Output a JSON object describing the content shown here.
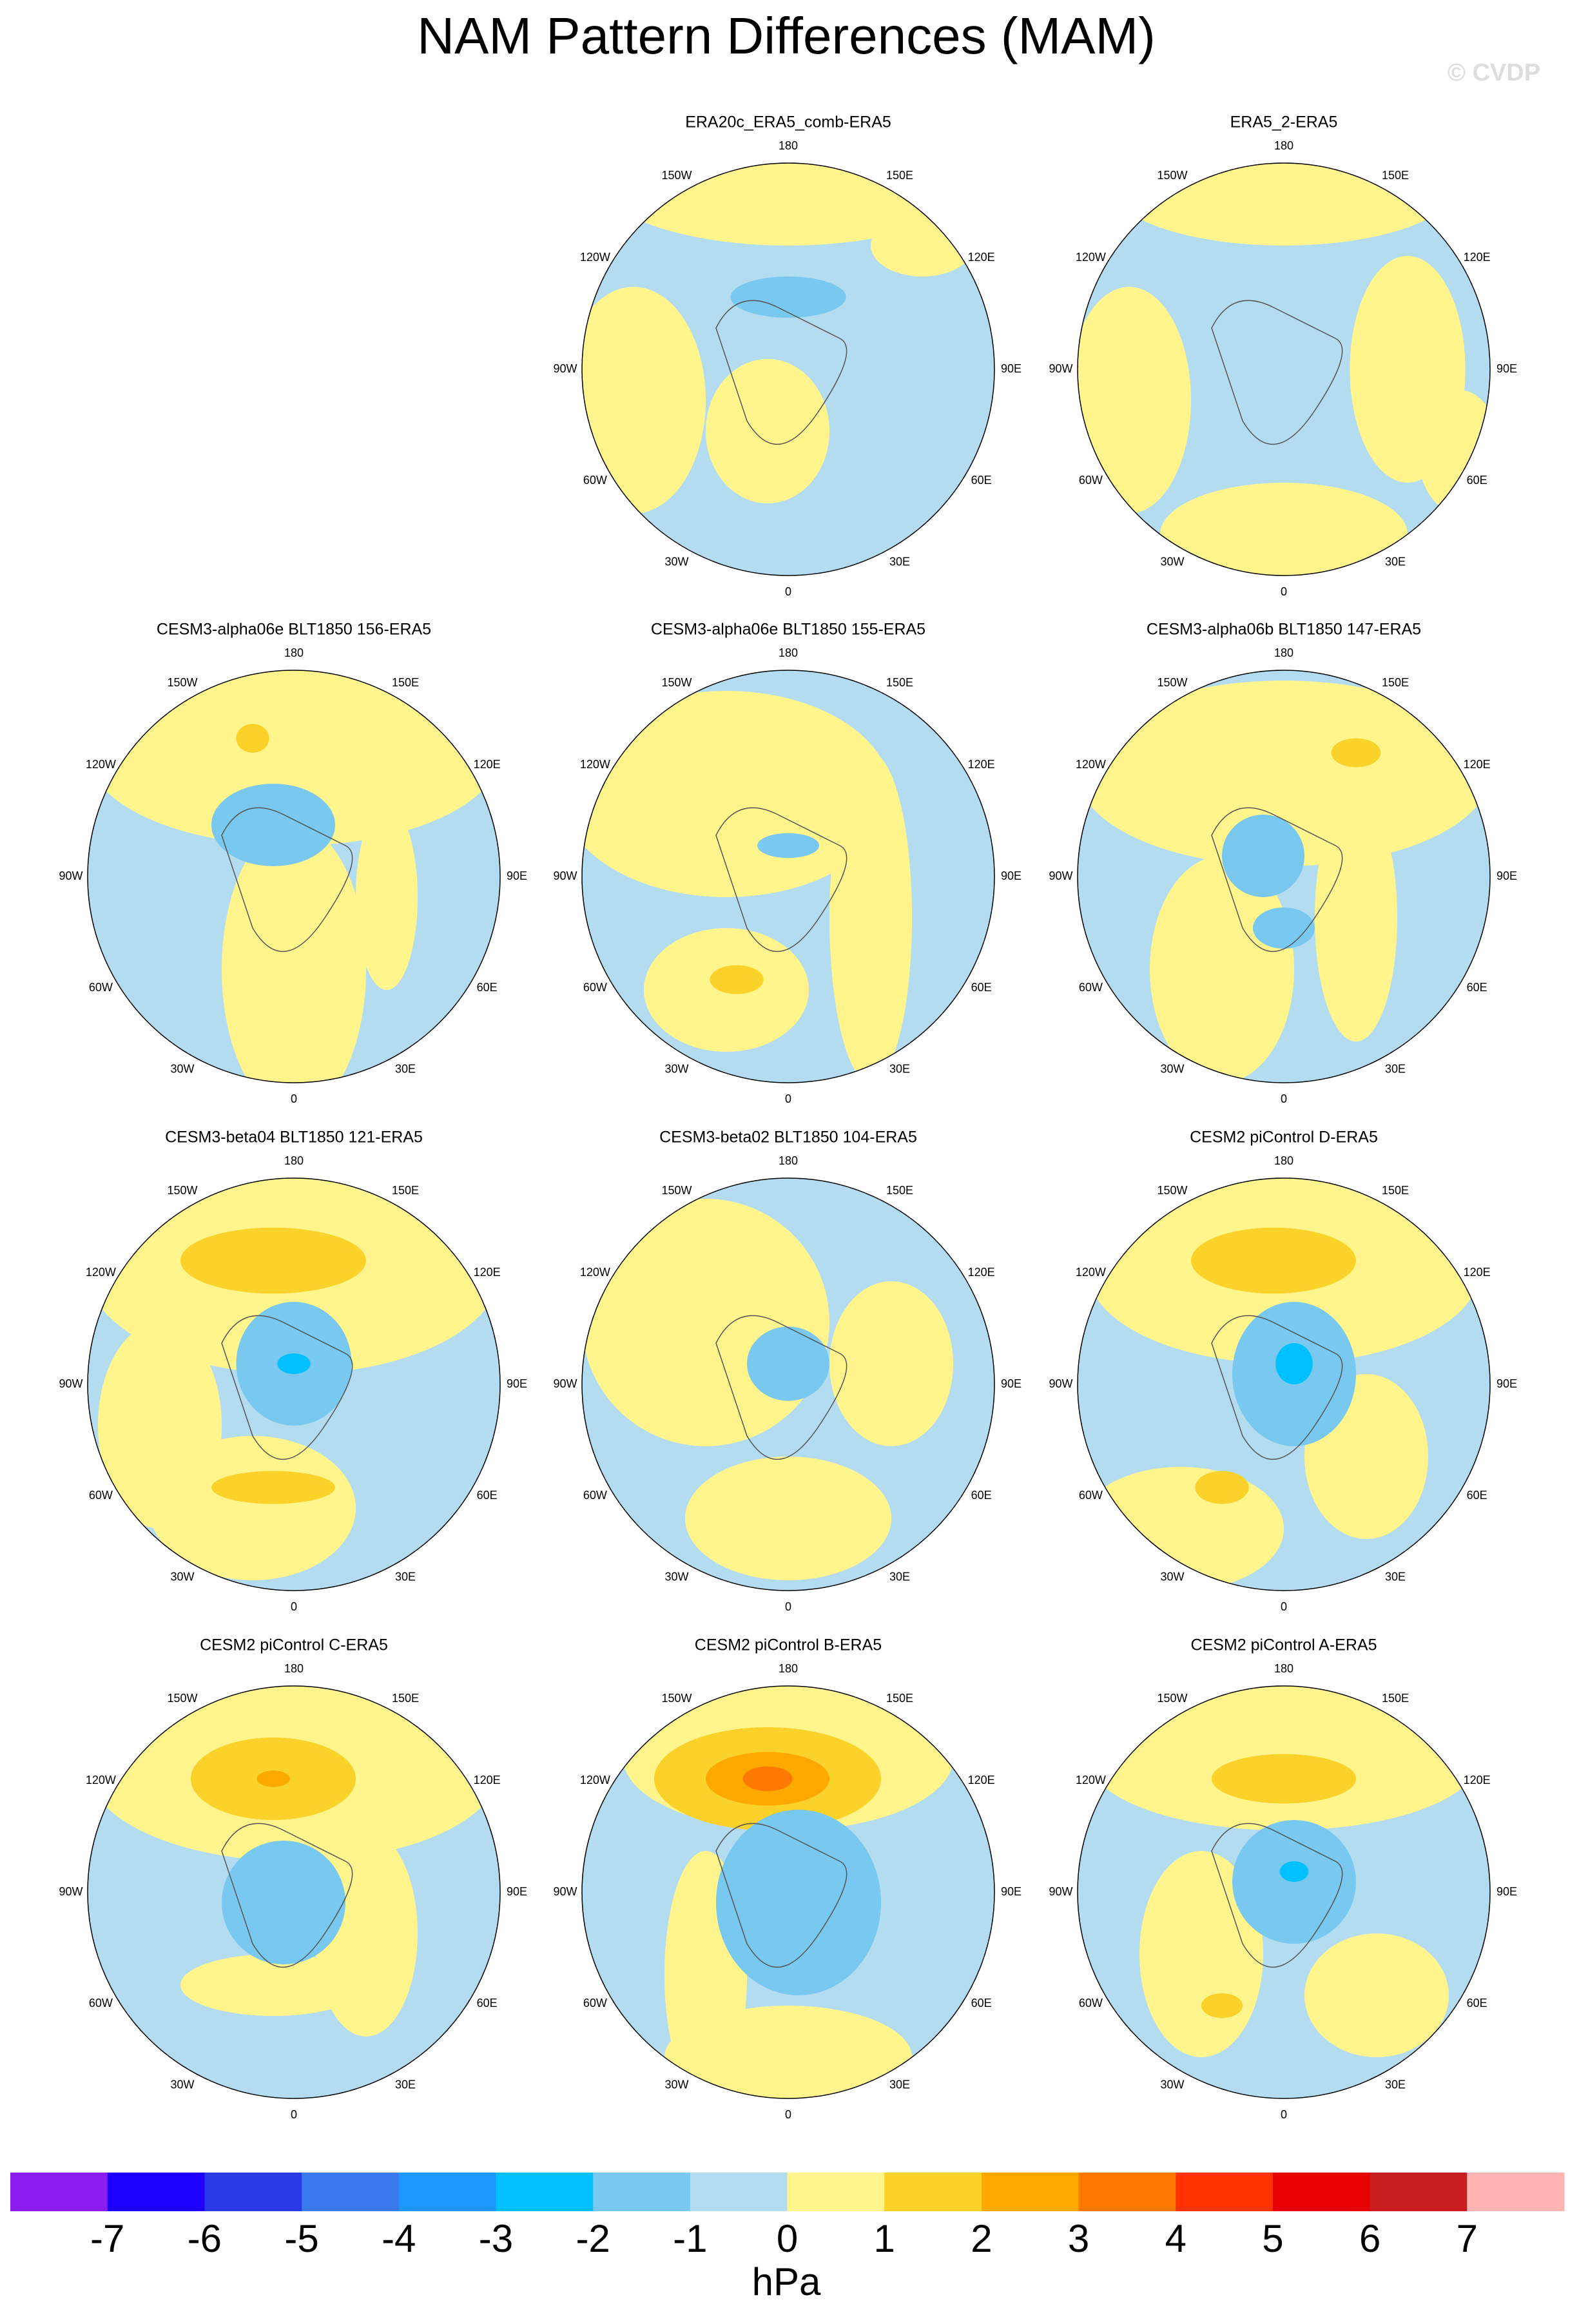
{
  "title": "NAM Pattern Differences (MAM)",
  "watermark": "© CVDP",
  "panels": [
    {
      "title": "ERA20c_ERA5_comb-ERA5"
    },
    {
      "title": "ERA5_2-ERA5"
    },
    {
      "title": "CESM3-alpha06e BLT1850 156-ERA5"
    },
    {
      "title": "CESM3-alpha06e BLT1850 155-ERA5"
    },
    {
      "title": "CESM3-alpha06b BLT1850 147-ERA5"
    },
    {
      "title": "CESM3-beta04 BLT1850 121-ERA5"
    },
    {
      "title": "CESM3-beta02 BLT1850 104-ERA5"
    },
    {
      "title": "CESM2 piControl D-ERA5"
    },
    {
      "title": "CESM2 piControl C-ERA5"
    },
    {
      "title": "CESM2 piControl B-ERA5"
    },
    {
      "title": "CESM2 piControl A-ERA5"
    }
  ],
  "longitude_labels": [
    "0",
    "30E",
    "60E",
    "90E",
    "120E",
    "150E",
    "180",
    "150W",
    "120W",
    "90W",
    "60W",
    "30W"
  ],
  "colorbar": {
    "levels": [
      -7,
      -6,
      -5,
      -4,
      -3,
      -2,
      -1,
      0,
      1,
      2,
      3,
      4,
      5,
      6,
      7
    ],
    "colors": [
      "#8a1ef0",
      "#1e00ff",
      "#2a3ae8",
      "#3a78ee",
      "#1e96ff",
      "#00c0ff",
      "#78c8f0",
      "#b4dcf0",
      "#fff58c",
      "#fad22a",
      "#ffa800",
      "#ff7800",
      "#ff3200",
      "#e60000",
      "#c81e1e",
      "#ffb4b4"
    ],
    "label": "hPa"
  }
}
